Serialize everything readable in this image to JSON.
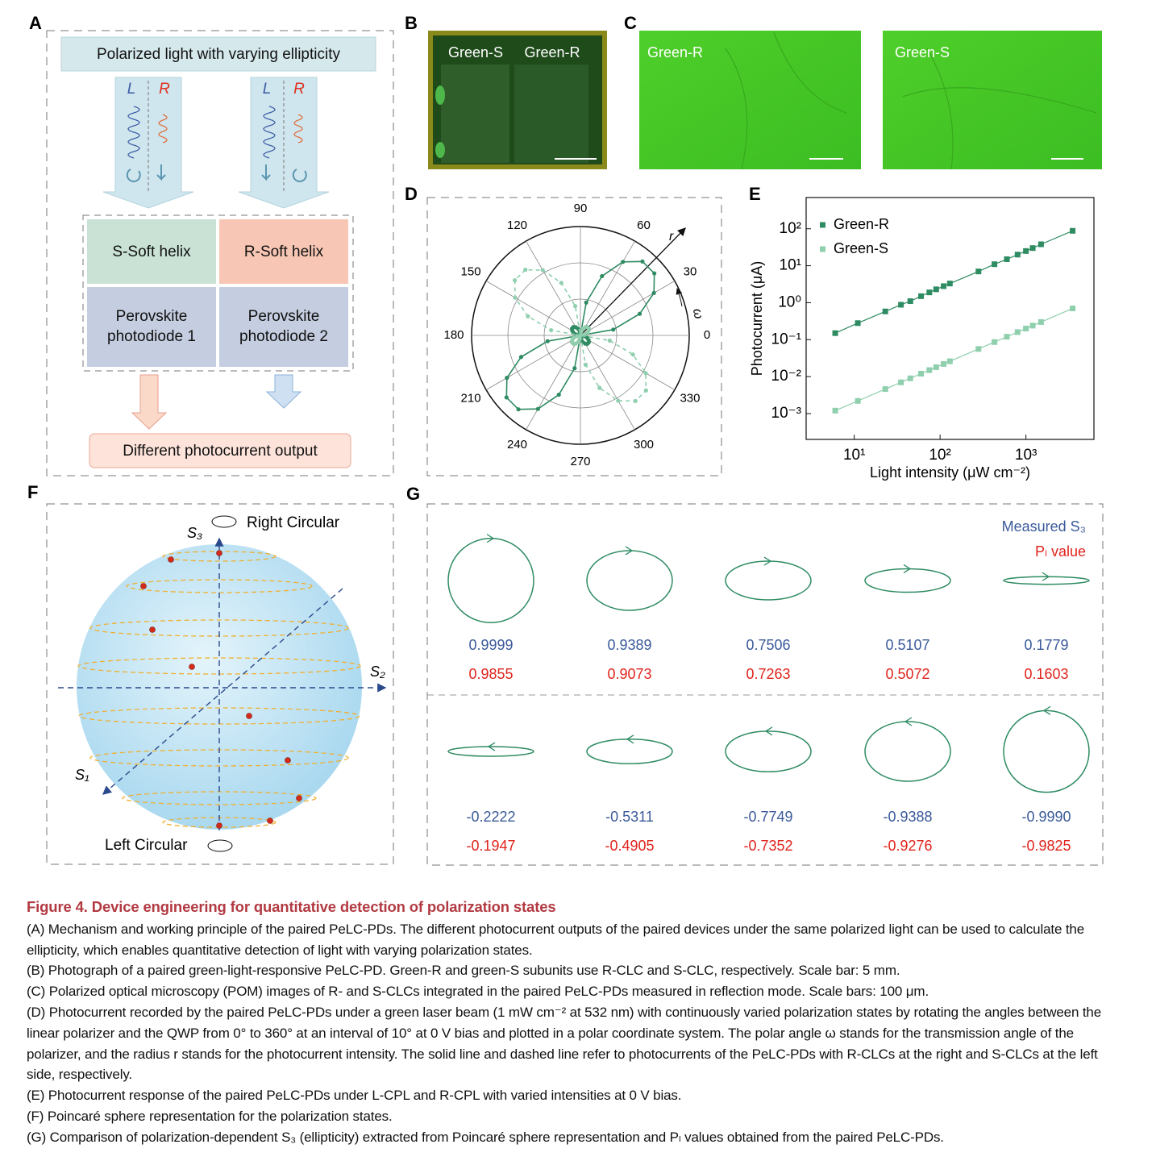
{
  "panel_labels": [
    "A",
    "B",
    "C",
    "D",
    "E",
    "F",
    "G"
  ],
  "panel_a": {
    "top": "Polarized light with varying ellipticity",
    "left_pair": [
      "L",
      "R"
    ],
    "right_pair": [
      "L",
      "R"
    ],
    "helix": [
      "S-Soft helix",
      "R-Soft helix"
    ],
    "photodiode_1": [
      "Perovskite",
      "photodiode 1"
    ],
    "photodiode_2": [
      "Perovskite",
      "photodiode 2"
    ],
    "bottom": "Different photocurrent output"
  },
  "panel_b": {
    "labels": [
      "Green-S",
      "Green-R"
    ]
  },
  "panel_c": {
    "labels": [
      "Green-R",
      "Green-S"
    ]
  },
  "chart_data": [
    {
      "type": "polar",
      "theta": [
        0,
        10,
        20,
        30,
        40,
        50,
        60,
        70,
        80,
        90,
        100,
        110,
        120,
        130,
        140,
        150,
        160,
        170,
        180,
        190,
        200,
        210,
        220,
        230,
        240,
        250,
        260,
        270,
        280,
        290,
        300,
        310,
        320,
        330,
        340,
        350
      ],
      "theta_ticks": [
        0,
        30,
        60,
        90,
        120,
        150,
        180,
        210,
        240,
        270,
        300,
        330
      ],
      "rlim": [
        0,
        1.5
      ],
      "rgrid": [
        0.5,
        1,
        1.5
      ],
      "axis_labels": {
        "r": "r",
        "theta": "ω"
      },
      "series": [
        {
          "name": "Green-R",
          "color": "#2e8b62",
          "dash": false,
          "values": [
            0,
            0.46,
            0.87,
            1.17,
            1.33,
            1.33,
            1.17,
            0.87,
            0.46,
            0,
            0.05,
            0.1,
            0.13,
            0.15,
            0.15,
            0.13,
            0.1,
            0.05,
            0,
            0.46,
            0.87,
            1.17,
            1.33,
            1.33,
            1.17,
            0.87,
            0.46,
            0,
            0.05,
            0.1,
            0.13,
            0.15,
            0.15,
            0.13,
            0.1,
            0.05
          ]
        },
        {
          "name": "Green-S",
          "color": "#8fcfae",
          "dash": true,
          "values": [
            0,
            0.05,
            0.1,
            0.13,
            0.15,
            0.15,
            0.13,
            0.1,
            0.05,
            0,
            0.41,
            0.77,
            1.04,
            1.18,
            1.18,
            1.04,
            0.77,
            0.41,
            0,
            0.05,
            0.1,
            0.13,
            0.15,
            0.15,
            0.13,
            0.1,
            0.05,
            0,
            0.41,
            0.77,
            1.04,
            1.18,
            1.18,
            1.04,
            0.77,
            0.41
          ]
        }
      ]
    },
    {
      "type": "line",
      "x_label": "Light intensity (μW cm⁻²)",
      "y_label": "Photocurrent (μA)",
      "log_x": true,
      "log_y": true,
      "x": [
        6,
        11,
        23,
        35,
        45,
        60,
        75,
        90,
        110,
        130,
        280,
        430,
        600,
        800,
        1000,
        1200,
        1500,
        3500
      ],
      "xlim": [
        2.75,
        6200
      ],
      "ylim": [
        0.0002,
        700
      ],
      "xticks": [
        {
          "value": 10,
          "label": "10¹"
        },
        {
          "value": 100,
          "label": "10²"
        },
        {
          "value": 1000,
          "label": "10³"
        }
      ],
      "yticks": [
        {
          "value": 0.001,
          "label": "10⁻³"
        },
        {
          "value": 0.01,
          "label": "10⁻²"
        },
        {
          "value": 0.1,
          "label": "10⁻¹"
        },
        {
          "value": 1,
          "label": "10⁰"
        },
        {
          "value": 10,
          "label": "10¹"
        },
        {
          "value": 100,
          "label": "10²"
        }
      ],
      "series": [
        {
          "name": "Green-R",
          "color": "#2e8b62",
          "values": [
            0.15,
            0.28,
            0.58,
            0.88,
            1.1,
            1.5,
            1.9,
            2.3,
            2.8,
            3.3,
            7,
            11,
            15,
            20,
            25,
            30,
            38,
            88
          ]
        },
        {
          "name": "Green-S",
          "color": "#8fcfae",
          "values": [
            0.0012,
            0.0022,
            0.0046,
            0.007,
            0.009,
            0.012,
            0.015,
            0.018,
            0.022,
            0.026,
            0.056,
            0.086,
            0.12,
            0.16,
            0.2,
            0.24,
            0.3,
            0.7
          ]
        }
      ]
    }
  ],
  "panel_f": {
    "right": "Right Circular",
    "left": "Left Circular",
    "s1": "S₁",
    "s2": "S₂",
    "s3": "S₃"
  },
  "panel_g": {
    "legend": [
      "Measured S₃",
      "Pₗ value"
    ],
    "rows": [
      {
        "s3": [
          0.9999,
          0.9389,
          0.7506,
          0.5107,
          0.1779
        ],
        "value_labels": [
          "0.9999",
          "0.9389",
          "0.7506",
          "0.5107",
          "0.1779"
        ],
        "pl": [
          0.9855,
          0.9073,
          0.7263,
          0.5072,
          0.1603
        ]
      },
      {
        "s3": [
          -0.2222,
          -0.5311,
          -0.7749,
          -0.9388,
          -0.999
        ],
        "value_labels": [
          "-0.2222",
          "-0.5311",
          "-0.7749",
          "-0.9388",
          "-0.9990"
        ],
        "pl": [
          -0.1947,
          -0.4905,
          -0.7352,
          -0.9276,
          -0.9825
        ]
      }
    ]
  },
  "caption": {
    "title": "Figure 4. Device engineering for quantitative detection of polarization states",
    "paragraphs": [
      "(A) Mechanism and working principle of the paired PeLC-PDs. The different photocurrent outputs of the paired devices under the same polarized light can be used to calculate the ellipticity, which enables quantitative detection of light with varying polarization states.",
      "(B) Photograph of a paired green-light-responsive PeLC-PD. Green-R and green-S subunits use R-CLC and S-CLC, respectively. Scale bar: 5 mm.",
      "(C) Polarized optical microscopy (POM) images of R- and S-CLCs integrated in the paired PeLC-PDs measured in reflection mode. Scale bars: 100 μm.",
      "(D) Photocurrent recorded by the paired PeLC-PDs under a green laser beam (1 mW cm⁻² at 532 nm) with continuously varied polarization states by rotating the angles between the linear polarizer and the QWP from 0° to 360° at an interval of 10° at 0 V bias and plotted in a polar coordinate system. The polar angle ω stands for the transmission angle of the polarizer, and the radius r stands for the photocurrent intensity. The solid line and dashed line refer to photocurrents of the PeLC-PDs with R-CLCs at the right and S-CLCs at the left side, respectively.",
      "(E) Photocurrent response of the paired PeLC-PDs under L-CPL and R-CPL with varied intensities at 0 V bias.",
      "(F) Poincaré sphere representation for the polarization states.",
      "(G) Comparison of polarization-dependent S₃ (ellipticity) extracted from Poincaré sphere representation and Pₗ values obtained from the paired PeLC-PDs."
    ]
  }
}
